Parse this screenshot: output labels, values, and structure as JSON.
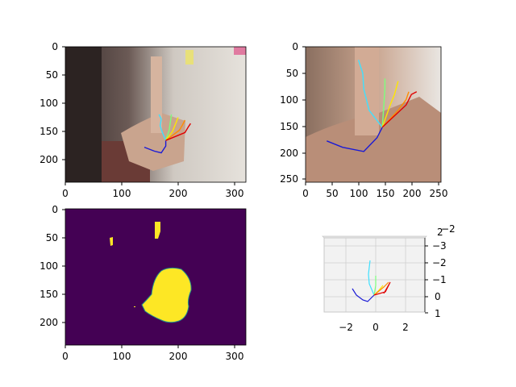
{
  "figure": {
    "width": 640,
    "height": 480,
    "background": "#ffffff"
  },
  "chart_data": [
    {
      "type": "image",
      "name": "hand-photo-with-skeleton",
      "xlim": [
        0,
        320
      ],
      "ylim": [
        240,
        0
      ],
      "xticks": [
        0,
        100,
        200,
        300
      ],
      "yticks": [
        0,
        50,
        100,
        150,
        200
      ],
      "skeleton_colors": {
        "thumb": "#1a1ad6",
        "index": "#3fe0ff",
        "middle": "#7cff7c",
        "ring": "#ffe600",
        "pinky": "#ff8c00",
        "extra": "#e00000"
      },
      "skeleton": {
        "wrist": [
          178,
          166
        ],
        "thumb": [
          [
            140,
            178
          ],
          [
            158,
            185
          ],
          [
            170,
            188
          ],
          [
            178,
            176
          ],
          [
            178,
            166
          ]
        ],
        "index": [
          [
            178,
            166
          ],
          [
            172,
            152
          ],
          [
            168,
            140
          ],
          [
            170,
            128
          ],
          [
            166,
            120
          ]
        ],
        "middle": [
          [
            178,
            166
          ],
          [
            184,
            148
          ],
          [
            186,
            134
          ],
          [
            188,
            120
          ]
        ],
        "ring": [
          [
            178,
            166
          ],
          [
            190,
            150
          ],
          [
            196,
            135
          ],
          [
            200,
            125
          ]
        ],
        "pinky": [
          [
            178,
            166
          ],
          [
            202,
            148
          ],
          [
            208,
            138
          ],
          [
            212,
            130
          ]
        ],
        "extra": [
          [
            178,
            166
          ],
          [
            212,
            152
          ],
          [
            218,
            142
          ],
          [
            222,
            136
          ]
        ]
      }
    },
    {
      "type": "image",
      "name": "hand-crop-with-skeleton",
      "xlim": [
        0,
        256
      ],
      "ylim": [
        256,
        0
      ],
      "xticks": [
        0,
        50,
        100,
        150,
        200,
        250
      ],
      "yticks": [
        0,
        50,
        100,
        150,
        200,
        250
      ],
      "skeleton": {
        "wrist": [
          145,
          152
        ],
        "thumb": [
          [
            40,
            178
          ],
          [
            70,
            190
          ],
          [
            110,
            198
          ],
          [
            135,
            172
          ],
          [
            145,
            152
          ]
        ],
        "index": [
          [
            145,
            152
          ],
          [
            120,
            120
          ],
          [
            110,
            80
          ],
          [
            108,
            50
          ],
          [
            100,
            25
          ]
        ],
        "middle": [
          [
            145,
            152
          ],
          [
            148,
            110
          ],
          [
            150,
            80
          ],
          [
            150,
            60
          ]
        ],
        "ring": [
          [
            145,
            152
          ],
          [
            160,
            110
          ],
          [
            168,
            90
          ],
          [
            175,
            65
          ]
        ],
        "pinky": [
          [
            145,
            152
          ],
          [
            175,
            120
          ],
          [
            190,
            100
          ],
          [
            195,
            85
          ]
        ],
        "extra": [
          [
            145,
            152
          ],
          [
            190,
            110
          ],
          [
            200,
            90
          ],
          [
            210,
            85
          ]
        ]
      }
    },
    {
      "type": "heatmap",
      "name": "hand-segmentation-mask",
      "xlim": [
        0,
        320
      ],
      "ylim": [
        240,
        0
      ],
      "xticks": [
        0,
        100,
        200,
        300
      ],
      "yticks": [
        0,
        50,
        100,
        150,
        200
      ],
      "background_color": "#440154",
      "foreground_color": "#fde725",
      "edge_color": "#21918c"
    },
    {
      "type": "line3d",
      "name": "3d-hand-skeleton",
      "xticks": [
        -2,
        0,
        2
      ],
      "yticks": [
        -3,
        -2,
        -1,
        0,
        1
      ],
      "ytick_labels": [
        "−3",
        "−2",
        "−1",
        "0",
        "1"
      ],
      "xtick_labels": [
        "−2",
        "0",
        "2"
      ],
      "ztick_labels": [
        "2",
        "−2"
      ],
      "pane_color": "#f2f2f2",
      "grid_color": "#c8c8c8"
    }
  ],
  "ticks": {
    "p1x": [
      "0",
      "100",
      "200",
      "300"
    ],
    "p1y": [
      "0",
      "50",
      "100",
      "150",
      "200"
    ],
    "p2x": [
      "0",
      "50",
      "100",
      "150",
      "200",
      "250"
    ],
    "p2y": [
      "0",
      "50",
      "100",
      "150",
      "200",
      "250"
    ],
    "p3x": [
      "0",
      "100",
      "200",
      "300"
    ],
    "p3y": [
      "0",
      "50",
      "100",
      "150",
      "200"
    ],
    "p4x": [
      "−2",
      "0",
      "2"
    ],
    "p4y": [
      "−3",
      "−2",
      "−1",
      "0",
      "1"
    ],
    "p4z": [
      "2",
      "−2"
    ]
  }
}
